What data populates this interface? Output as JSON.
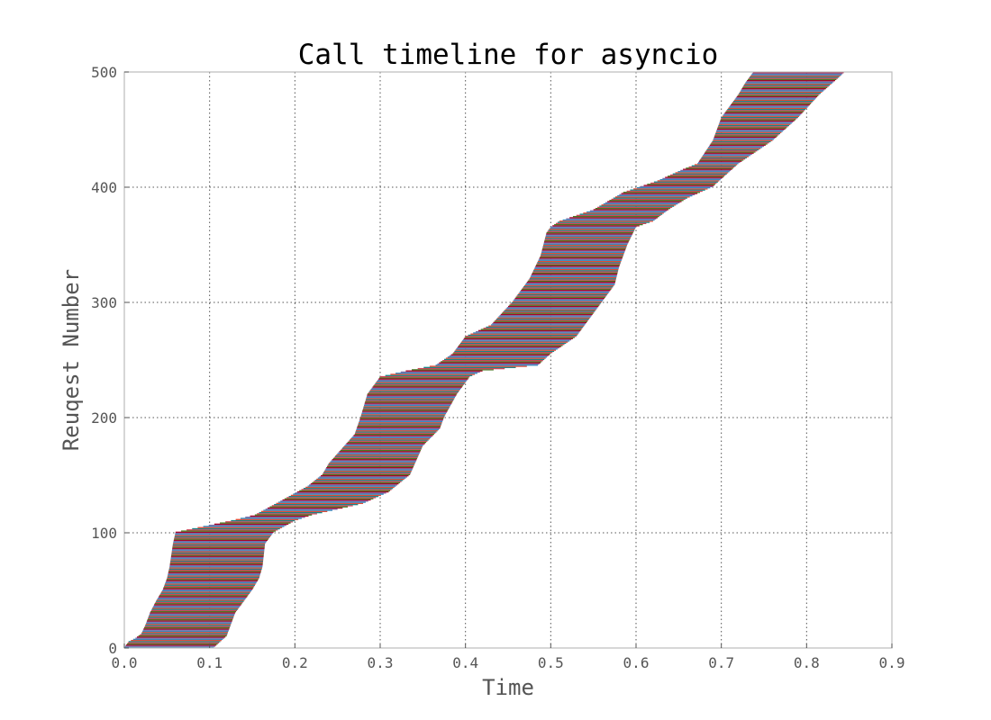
{
  "chart_data": {
    "type": "timeline",
    "title": "Call timeline for asyncio",
    "xlabel": "Time",
    "ylabel": "Reuqest Number",
    "xlim": [
      0.0,
      0.9
    ],
    "ylim": [
      0,
      500
    ],
    "xticks": [
      "0.0",
      "0.1",
      "0.2",
      "0.3",
      "0.4",
      "0.5",
      "0.6",
      "0.7",
      "0.8",
      "0.9"
    ],
    "yticks": [
      "0",
      "100",
      "200",
      "300",
      "400",
      "500"
    ],
    "grid": true,
    "legend": "none",
    "request_count": 500,
    "series_colors": [
      "#348abd",
      "#7a68a6",
      "#a60628",
      "#467821",
      "#cf4457",
      "#188487",
      "#e24a33"
    ],
    "start_curve": [
      [
        0,
        0.0
      ],
      [
        5,
        0.005
      ],
      [
        8,
        0.013
      ],
      [
        12,
        0.02
      ],
      [
        20,
        0.025
      ],
      [
        30,
        0.03
      ],
      [
        40,
        0.037
      ],
      [
        50,
        0.045
      ],
      [
        60,
        0.05
      ],
      [
        70,
        0.053
      ],
      [
        90,
        0.057
      ],
      [
        100,
        0.06
      ],
      [
        110,
        0.125
      ],
      [
        115,
        0.153
      ],
      [
        125,
        0.178
      ],
      [
        140,
        0.215
      ],
      [
        150,
        0.232
      ],
      [
        160,
        0.24
      ],
      [
        185,
        0.27
      ],
      [
        200,
        0.277
      ],
      [
        220,
        0.285
      ],
      [
        235,
        0.3
      ],
      [
        240,
        0.33
      ],
      [
        245,
        0.365
      ],
      [
        255,
        0.385
      ],
      [
        270,
        0.4
      ],
      [
        280,
        0.43
      ],
      [
        300,
        0.455
      ],
      [
        320,
        0.475
      ],
      [
        340,
        0.488
      ],
      [
        360,
        0.495
      ],
      [
        365,
        0.5
      ],
      [
        370,
        0.51
      ],
      [
        380,
        0.55
      ],
      [
        395,
        0.585
      ],
      [
        405,
        0.625
      ],
      [
        415,
        0.655
      ],
      [
        420,
        0.672
      ],
      [
        440,
        0.69
      ],
      [
        460,
        0.7
      ],
      [
        480,
        0.72
      ],
      [
        490,
        0.728
      ],
      [
        500,
        0.738
      ]
    ],
    "end_curve": [
      [
        0,
        0.105
      ],
      [
        10,
        0.12
      ],
      [
        20,
        0.125
      ],
      [
        30,
        0.13
      ],
      [
        40,
        0.14
      ],
      [
        50,
        0.15
      ],
      [
        60,
        0.158
      ],
      [
        70,
        0.162
      ],
      [
        90,
        0.165
      ],
      [
        100,
        0.175
      ],
      [
        110,
        0.2
      ],
      [
        115,
        0.22
      ],
      [
        125,
        0.28
      ],
      [
        135,
        0.31
      ],
      [
        150,
        0.335
      ],
      [
        175,
        0.35
      ],
      [
        190,
        0.37
      ],
      [
        200,
        0.375
      ],
      [
        220,
        0.39
      ],
      [
        235,
        0.405
      ],
      [
        240,
        0.42
      ],
      [
        245,
        0.485
      ],
      [
        255,
        0.5
      ],
      [
        270,
        0.53
      ],
      [
        290,
        0.55
      ],
      [
        300,
        0.56
      ],
      [
        315,
        0.575
      ],
      [
        330,
        0.58
      ],
      [
        350,
        0.59
      ],
      [
        365,
        0.6
      ],
      [
        370,
        0.62
      ],
      [
        380,
        0.638
      ],
      [
        390,
        0.66
      ],
      [
        400,
        0.69
      ],
      [
        420,
        0.72
      ],
      [
        440,
        0.76
      ],
      [
        460,
        0.79
      ],
      [
        480,
        0.815
      ],
      [
        495,
        0.838
      ],
      [
        500,
        0.845
      ]
    ]
  }
}
